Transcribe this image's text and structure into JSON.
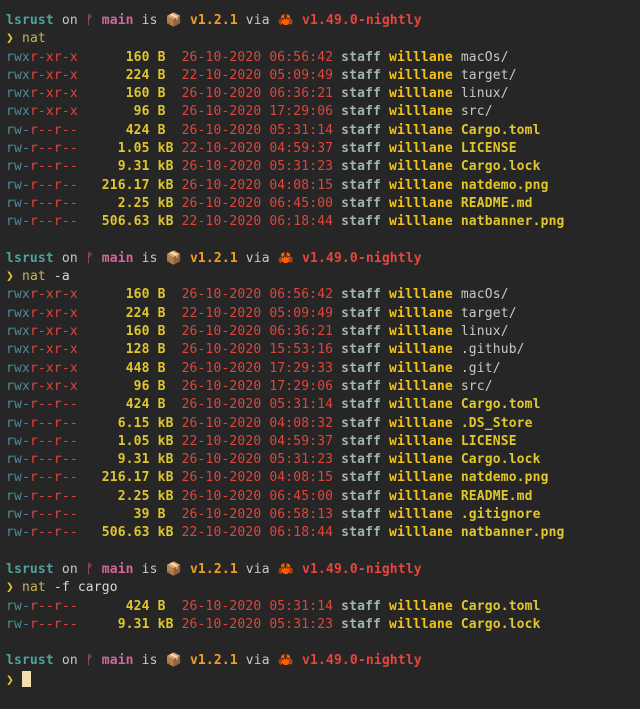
{
  "prompt": {
    "dir": "lsrust",
    "on": "on",
    "branch_icon": "git-branch-icon",
    "branch_glyph": "ᚠ",
    "branch": "main",
    "is": "is",
    "package_icon": "📦",
    "version": "v1.2.1",
    "via": "via",
    "rust_icon": "🦀",
    "rust_version": "v1.49.0-nightly",
    "arrow": "❯"
  },
  "colors": {
    "background": "#262626",
    "dir": "#4fa39c",
    "branch": "#d3669b",
    "version": "#f0a020",
    "rust": "#e8453c"
  },
  "blocks": [
    {
      "command": "nat",
      "args": "",
      "rows": [
        {
          "own": "rwx",
          "rest": "r-xr-x",
          "size": "160",
          "unit": "B",
          "date": "26-10-2020",
          "time": "06:56:42",
          "group": "staff",
          "user": "willlane",
          "name": "macOs/",
          "dir": true
        },
        {
          "own": "rwx",
          "rest": "r-xr-x",
          "size": "224",
          "unit": "B",
          "date": "22-10-2020",
          "time": "05:09:49",
          "group": "staff",
          "user": "willlane",
          "name": "target/",
          "dir": true
        },
        {
          "own": "rwx",
          "rest": "r-xr-x",
          "size": "160",
          "unit": "B",
          "date": "26-10-2020",
          "time": "06:36:21",
          "group": "staff",
          "user": "willlane",
          "name": "linux/",
          "dir": true
        },
        {
          "own": "rwx",
          "rest": "r-xr-x",
          "size": "96",
          "unit": "B",
          "date": "26-10-2020",
          "time": "17:29:06",
          "group": "staff",
          "user": "willlane",
          "name": "src/",
          "dir": true
        },
        {
          "own": "rw-",
          "rest": "r--r--",
          "size": "424",
          "unit": "B",
          "date": "26-10-2020",
          "time": "05:31:14",
          "group": "staff",
          "user": "willlane",
          "name": "Cargo.toml",
          "dir": false
        },
        {
          "own": "rw-",
          "rest": "r--r--",
          "size": "1.05",
          "unit": "kB",
          "date": "22-10-2020",
          "time": "04:59:37",
          "group": "staff",
          "user": "willlane",
          "name": "LICENSE",
          "dir": false
        },
        {
          "own": "rw-",
          "rest": "r--r--",
          "size": "9.31",
          "unit": "kB",
          "date": "26-10-2020",
          "time": "05:31:23",
          "group": "staff",
          "user": "willlane",
          "name": "Cargo.lock",
          "dir": false
        },
        {
          "own": "rw-",
          "rest": "r--r--",
          "size": "216.17",
          "unit": "kB",
          "date": "26-10-2020",
          "time": "04:08:15",
          "group": "staff",
          "user": "willlane",
          "name": "natdemo.png",
          "dir": false
        },
        {
          "own": "rw-",
          "rest": "r--r--",
          "size": "2.25",
          "unit": "kB",
          "date": "26-10-2020",
          "time": "06:45:00",
          "group": "staff",
          "user": "willlane",
          "name": "README.md",
          "dir": false
        },
        {
          "own": "rw-",
          "rest": "r--r--",
          "size": "506.63",
          "unit": "kB",
          "date": "22-10-2020",
          "time": "06:18:44",
          "group": "staff",
          "user": "willlane",
          "name": "natbanner.png",
          "dir": false
        }
      ]
    },
    {
      "command": "nat",
      "args": "-a",
      "rows": [
        {
          "own": "rwx",
          "rest": "r-xr-x",
          "size": "160",
          "unit": "B",
          "date": "26-10-2020",
          "time": "06:56:42",
          "group": "staff",
          "user": "willlane",
          "name": "macOs/",
          "dir": true
        },
        {
          "own": "rwx",
          "rest": "r-xr-x",
          "size": "224",
          "unit": "B",
          "date": "22-10-2020",
          "time": "05:09:49",
          "group": "staff",
          "user": "willlane",
          "name": "target/",
          "dir": true
        },
        {
          "own": "rwx",
          "rest": "r-xr-x",
          "size": "160",
          "unit": "B",
          "date": "26-10-2020",
          "time": "06:36:21",
          "group": "staff",
          "user": "willlane",
          "name": "linux/",
          "dir": true
        },
        {
          "own": "rwx",
          "rest": "r-xr-x",
          "size": "128",
          "unit": "B",
          "date": "26-10-2020",
          "time": "15:53:16",
          "group": "staff",
          "user": "willlane",
          "name": ".github/",
          "dir": true
        },
        {
          "own": "rwx",
          "rest": "r-xr-x",
          "size": "448",
          "unit": "B",
          "date": "26-10-2020",
          "time": "17:29:33",
          "group": "staff",
          "user": "willlane",
          "name": ".git/",
          "dir": true
        },
        {
          "own": "rwx",
          "rest": "r-xr-x",
          "size": "96",
          "unit": "B",
          "date": "26-10-2020",
          "time": "17:29:06",
          "group": "staff",
          "user": "willlane",
          "name": "src/",
          "dir": true
        },
        {
          "own": "rw-",
          "rest": "r--r--",
          "size": "424",
          "unit": "B",
          "date": "26-10-2020",
          "time": "05:31:14",
          "group": "staff",
          "user": "willlane",
          "name": "Cargo.toml",
          "dir": false
        },
        {
          "own": "rw-",
          "rest": "r--r--",
          "size": "6.15",
          "unit": "kB",
          "date": "26-10-2020",
          "time": "04:08:32",
          "group": "staff",
          "user": "willlane",
          "name": ".DS_Store",
          "dir": false
        },
        {
          "own": "rw-",
          "rest": "r--r--",
          "size": "1.05",
          "unit": "kB",
          "date": "22-10-2020",
          "time": "04:59:37",
          "group": "staff",
          "user": "willlane",
          "name": "LICENSE",
          "dir": false
        },
        {
          "own": "rw-",
          "rest": "r--r--",
          "size": "9.31",
          "unit": "kB",
          "date": "26-10-2020",
          "time": "05:31:23",
          "group": "staff",
          "user": "willlane",
          "name": "Cargo.lock",
          "dir": false
        },
        {
          "own": "rw-",
          "rest": "r--r--",
          "size": "216.17",
          "unit": "kB",
          "date": "26-10-2020",
          "time": "04:08:15",
          "group": "staff",
          "user": "willlane",
          "name": "natdemo.png",
          "dir": false
        },
        {
          "own": "rw-",
          "rest": "r--r--",
          "size": "2.25",
          "unit": "kB",
          "date": "26-10-2020",
          "time": "06:45:00",
          "group": "staff",
          "user": "willlane",
          "name": "README.md",
          "dir": false
        },
        {
          "own": "rw-",
          "rest": "r--r--",
          "size": "39",
          "unit": "B",
          "date": "26-10-2020",
          "time": "06:58:13",
          "group": "staff",
          "user": "willlane",
          "name": ".gitignore",
          "dir": false
        },
        {
          "own": "rw-",
          "rest": "r--r--",
          "size": "506.63",
          "unit": "kB",
          "date": "22-10-2020",
          "time": "06:18:44",
          "group": "staff",
          "user": "willlane",
          "name": "natbanner.png",
          "dir": false
        }
      ]
    },
    {
      "command": "nat",
      "args": "-f cargo",
      "rows": [
        {
          "own": "rw-",
          "rest": "r--r--",
          "size": "424",
          "unit": "B",
          "date": "26-10-2020",
          "time": "05:31:14",
          "group": "staff",
          "user": "willlane",
          "name": "Cargo.toml",
          "dir": false
        },
        {
          "own": "rw-",
          "rest": "r--r--",
          "size": "9.31",
          "unit": "kB",
          "date": "26-10-2020",
          "time": "05:31:23",
          "group": "staff",
          "user": "willlane",
          "name": "Cargo.lock",
          "dir": false
        }
      ]
    }
  ]
}
